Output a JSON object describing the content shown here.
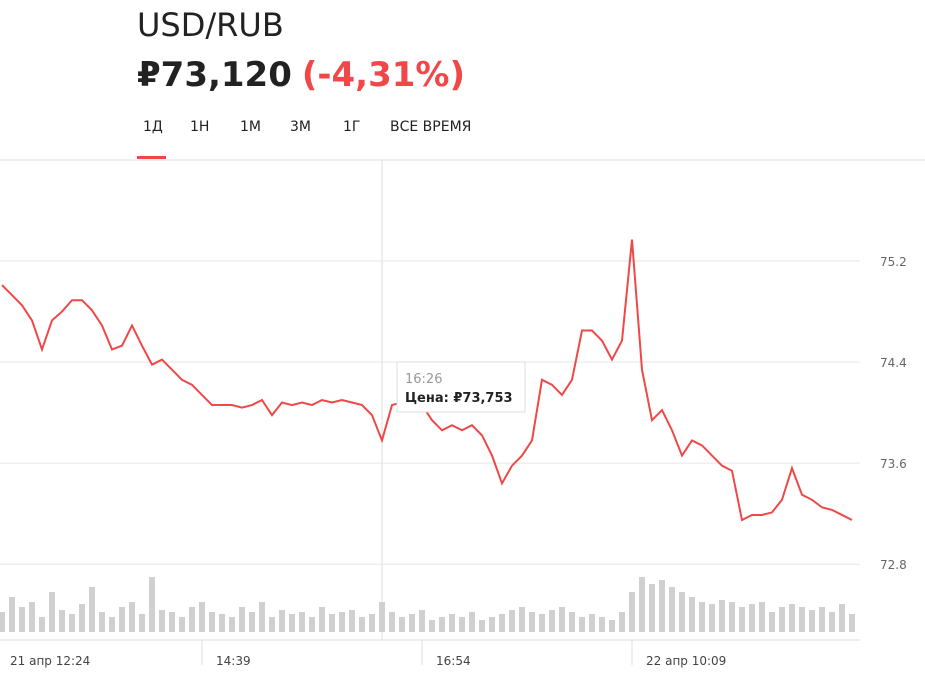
{
  "header": {
    "pair": "USD/RUB",
    "price": "₽73,120",
    "change": "(-4,31%)"
  },
  "tabs": [
    "1Д",
    "1Н",
    "1М",
    "3М",
    "1Г",
    "ВСЕ ВРЕМЯ"
  ],
  "tooltip": {
    "time": "16:26",
    "price": "Цена: ₽73,753"
  },
  "chart_data": {
    "type": "line",
    "color": "#f04848",
    "grid": true,
    "ylim": [
      72.2,
      76.0
    ],
    "yticks": [
      72.8,
      73.6,
      74.4,
      75.2
    ],
    "categories": [
      "21 апр 12:24",
      null,
      null,
      null,
      null,
      null,
      null,
      null,
      null,
      null,
      null,
      null,
      null,
      null,
      null,
      null,
      null,
      null,
      null,
      null,
      null,
      "14:39",
      null,
      null,
      null,
      null,
      null,
      null,
      null,
      null,
      null,
      null,
      null,
      null,
      null,
      null,
      null,
      null,
      null,
      null,
      null,
      null,
      null,
      "16:54",
      null,
      null,
      null,
      null,
      null,
      null,
      null,
      null,
      null,
      null,
      null,
      null,
      null,
      null,
      null,
      null,
      null,
      null,
      null,
      null,
      "22 апр 10:09",
      null,
      null,
      null,
      null,
      null,
      null,
      null,
      null,
      null,
      null,
      null,
      null,
      null,
      null,
      null,
      null,
      null,
      null,
      null,
      null,
      null
    ],
    "values": [
      75.01,
      74.93,
      74.85,
      74.73,
      74.5,
      74.73,
      74.8,
      74.89,
      74.89,
      74.81,
      74.69,
      74.5,
      74.53,
      74.69,
      74.53,
      74.38,
      74.42,
      74.34,
      74.26,
      74.22,
      74.14,
      74.06,
      74.06,
      74.06,
      74.04,
      74.06,
      74.1,
      73.98,
      74.08,
      74.06,
      74.08,
      74.06,
      74.1,
      74.08,
      74.1,
      74.08,
      74.06,
      73.98,
      73.78,
      74.06,
      74.08,
      74.1,
      74.06,
      73.94,
      73.86,
      73.9,
      73.86,
      73.9,
      73.82,
      73.66,
      73.44,
      73.58,
      73.66,
      73.78,
      74.26,
      74.22,
      74.14,
      74.26,
      74.65,
      74.65,
      74.57,
      74.42,
      74.57,
      75.37,
      74.34,
      73.94,
      74.02,
      73.86,
      73.66,
      73.78,
      73.74,
      73.66,
      73.58,
      73.54,
      73.15,
      73.19,
      73.19,
      73.21,
      73.31,
      73.56,
      73.35,
      73.31,
      73.25,
      73.23,
      73.19,
      73.15
    ],
    "volume": [
      20,
      35,
      25,
      30,
      15,
      40,
      22,
      18,
      28,
      45,
      20,
      15,
      25,
      30,
      18,
      55,
      22,
      20,
      15,
      25,
      30,
      20,
      18,
      15,
      25,
      20,
      30,
      15,
      22,
      18,
      20,
      15,
      25,
      18,
      20,
      22,
      15,
      18,
      30,
      20,
      15,
      18,
      22,
      12,
      15,
      18,
      15,
      20,
      12,
      15,
      18,
      22,
      25,
      20,
      18,
      22,
      25,
      20,
      15,
      18,
      15,
      12,
      20,
      40,
      55,
      48,
      52,
      45,
      40,
      35,
      30,
      28,
      32,
      30,
      25,
      28,
      30,
      20,
      25,
      28,
      25,
      22,
      25,
      20,
      28,
      18
    ]
  }
}
